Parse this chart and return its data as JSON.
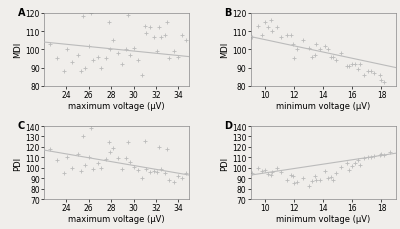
{
  "panel_A": {
    "label": "A",
    "scatter_x": [
      22.5,
      23.2,
      23.8,
      24.1,
      24.5,
      25.0,
      25.3,
      25.7,
      26.0,
      26.4,
      26.8,
      27.1,
      27.5,
      27.9,
      28.2,
      28.6,
      29.0,
      29.3,
      29.7,
      30.0,
      30.4,
      30.8,
      31.1,
      31.5,
      31.8,
      32.1,
      32.5,
      32.8,
      33.2,
      33.6,
      34.0,
      34.3,
      34.7,
      25.5,
      26.2,
      27.8,
      29.5,
      31.0,
      32.3,
      33.0
    ],
    "scatter_y": [
      103,
      95,
      88,
      100,
      93,
      97,
      88,
      90,
      102,
      94,
      96,
      90,
      95,
      100,
      105,
      98,
      92,
      100,
      97,
      101,
      94,
      86,
      109,
      112,
      107,
      99,
      107,
      108,
      95,
      99,
      96,
      108,
      105,
      118,
      120,
      115,
      119,
      113,
      112,
      115
    ],
    "trend_x": [
      22,
      35
    ],
    "trend_y": [
      104,
      96
    ],
    "xlabel": "maximum voltage (μV)",
    "ylabel": "MDI",
    "xlim": [
      22,
      35
    ],
    "ylim": [
      80,
      120
    ],
    "xticks": [
      24,
      26,
      28,
      30,
      32,
      34
    ],
    "yticks": [
      80,
      90,
      100,
      110,
      120
    ]
  },
  "panel_B": {
    "label": "B",
    "scatter_x": [
      9.1,
      9.5,
      10.0,
      10.4,
      10.8,
      11.1,
      11.5,
      11.9,
      12.2,
      12.6,
      13.0,
      13.4,
      13.8,
      14.1,
      14.5,
      14.9,
      15.2,
      15.6,
      16.0,
      16.4,
      16.8,
      17.1,
      17.5,
      17.9,
      18.2,
      18.6,
      10.5,
      11.8,
      13.2,
      14.7,
      15.8,
      16.5,
      17.3,
      9.8,
      12.0,
      14.3,
      16.2,
      18.0,
      10.2,
      13.5
    ],
    "scatter_y": [
      107,
      113,
      115,
      116,
      112,
      107,
      108,
      103,
      100,
      105,
      101,
      97,
      100,
      102,
      96,
      94,
      98,
      91,
      92,
      89,
      86,
      88,
      87,
      86,
      82,
      78,
      110,
      108,
      96,
      96,
      91,
      92,
      88,
      108,
      95,
      100,
      92,
      83,
      112,
      103
    ],
    "trend_x": [
      9,
      19
    ],
    "trend_y": [
      107,
      90
    ],
    "xlabel": "minimum voltage (μV)",
    "ylabel": "MDI",
    "xlim": [
      9,
      19
    ],
    "ylim": [
      80,
      120
    ],
    "xticks": [
      10,
      12,
      14,
      16,
      18
    ],
    "yticks": [
      80,
      90,
      100,
      110,
      120
    ]
  },
  "panel_C": {
    "label": "C",
    "scatter_x": [
      22.5,
      23.2,
      23.8,
      24.1,
      24.5,
      25.0,
      25.3,
      25.7,
      26.0,
      26.4,
      26.8,
      27.1,
      27.5,
      27.9,
      28.2,
      28.6,
      29.0,
      29.3,
      29.7,
      30.0,
      30.4,
      30.8,
      31.1,
      31.5,
      31.8,
      32.1,
      32.5,
      32.8,
      33.2,
      33.6,
      34.0,
      34.3,
      34.7,
      25.5,
      26.2,
      27.8,
      29.5,
      31.0,
      32.3,
      33.0
    ],
    "scatter_y": [
      118,
      107,
      95,
      110,
      100,
      113,
      97,
      103,
      110,
      99,
      105,
      100,
      108,
      115,
      119,
      109,
      99,
      109,
      106,
      101,
      98,
      90,
      99,
      96,
      97,
      96,
      99,
      95,
      88,
      86,
      92,
      90,
      95,
      130,
      138,
      125,
      125,
      126,
      120,
      118
    ],
    "trend_x": [
      22,
      35
    ],
    "trend_y": [
      117,
      93
    ],
    "xlabel": "maximum voltage (μV)",
    "ylabel": "PDI",
    "xlim": [
      22,
      35
    ],
    "ylim": [
      70,
      140
    ],
    "xticks": [
      24,
      26,
      28,
      30,
      32,
      34
    ],
    "yticks": [
      70,
      80,
      90,
      100,
      110,
      120,
      130,
      140
    ]
  },
  "panel_D": {
    "label": "D",
    "scatter_x": [
      9.1,
      9.5,
      10.0,
      10.4,
      10.8,
      11.1,
      11.5,
      11.9,
      12.2,
      12.6,
      13.0,
      13.4,
      13.8,
      14.1,
      14.5,
      14.9,
      15.2,
      15.6,
      16.0,
      16.4,
      16.8,
      17.1,
      17.5,
      17.9,
      18.2,
      18.6,
      10.5,
      11.8,
      13.2,
      14.7,
      15.8,
      16.5,
      17.3,
      9.8,
      12.0,
      14.3,
      16.2,
      18.0,
      10.2,
      13.5
    ],
    "scatter_y": [
      95,
      100,
      98,
      93,
      100,
      96,
      88,
      92,
      86,
      90,
      83,
      92,
      88,
      97,
      91,
      95,
      101,
      105,
      102,
      107,
      109,
      110,
      111,
      112,
      112,
      115,
      96,
      93,
      87,
      88,
      98,
      103,
      110,
      97,
      85,
      90,
      105,
      113,
      94,
      88
    ],
    "trend_x": [
      9,
      19
    ],
    "trend_y": [
      93,
      114
    ],
    "xlabel": "minimum voltage (μV)",
    "ylabel": "PDI",
    "xlim": [
      9,
      19
    ],
    "ylim": [
      70,
      140
    ],
    "xticks": [
      10,
      12,
      14,
      16,
      18
    ],
    "yticks": [
      70,
      80,
      90,
      100,
      110,
      120,
      130,
      140
    ]
  },
  "scatter_color": "#bbbbbb",
  "line_color": "#bbbbbb",
  "marker_size": 8,
  "label_fontsize": 6,
  "tick_fontsize": 5.5,
  "panel_label_fontsize": 7,
  "bg_color": "#f0eeeb"
}
